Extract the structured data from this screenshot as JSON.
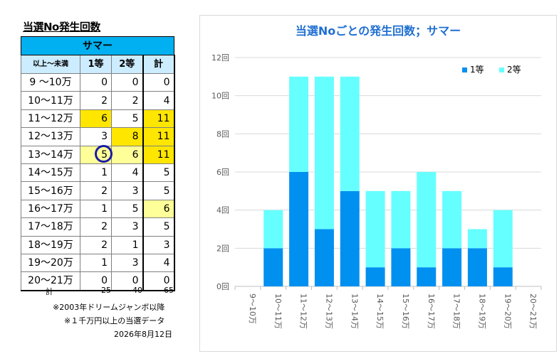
{
  "table": {
    "title": "当選No発生回数",
    "band": "サマー",
    "headers": [
      "以上～未満",
      "1等",
      "2等",
      "計"
    ],
    "rows": [
      {
        "range": "9 ～10万",
        "v1": 0,
        "v2": 0,
        "total": 0
      },
      {
        "range": "10～11万",
        "v1": 2,
        "v2": 2,
        "total": 4
      },
      {
        "range": "11～12万",
        "v1": 6,
        "v2": 5,
        "total": 11
      },
      {
        "range": "12～13万",
        "v1": 3,
        "v2": 8,
        "total": 11
      },
      {
        "range": "13～14万",
        "v1": 5,
        "v2": 6,
        "total": 11
      },
      {
        "range": "14～15万",
        "v1": 1,
        "v2": 4,
        "total": 5
      },
      {
        "range": "15～16万",
        "v1": 2,
        "v2": 3,
        "total": 5
      },
      {
        "range": "16～17万",
        "v1": 1,
        "v2": 5,
        "total": 6
      },
      {
        "range": "17～18万",
        "v1": 2,
        "v2": 3,
        "total": 5
      },
      {
        "range": "18～19万",
        "v1": 2,
        "v2": 1,
        "total": 3
      },
      {
        "range": "19～20万",
        "v1": 1,
        "v2": 3,
        "total": 4
      },
      {
        "range": "20～21万",
        "v1": 0,
        "v2": 0,
        "total": 0
      }
    ],
    "totals": {
      "label": "計",
      "v1": "25",
      "v2": "40",
      "total": "65"
    },
    "highlight_color": "#ffe600",
    "light_highlight_color": "#ffff99",
    "circle_color": "#1a1aa6"
  },
  "notes": {
    "line1": "※2003年ドリームジャンボ以降",
    "line2": "※１千万円以上の当選データ",
    "date": "2026年8月12日"
  },
  "chart_data": {
    "type": "bar",
    "stacked": true,
    "title": "当選Noごとの発生回数；サマー",
    "categories": [
      "9～10万",
      "10～11万",
      "11～12万",
      "12～13万",
      "13～14万",
      "14～15万",
      "15～16万",
      "16～17万",
      "17～18万",
      "18～19万",
      "19～20万",
      "20～21万"
    ],
    "series": [
      {
        "name": "1等",
        "values": [
          0,
          2,
          6,
          3,
          5,
          1,
          2,
          1,
          2,
          2,
          1,
          0
        ],
        "color": "#0090f0"
      },
      {
        "name": "2等",
        "values": [
          0,
          2,
          5,
          8,
          6,
          4,
          3,
          5,
          3,
          1,
          3,
          0
        ],
        "color": "#66ffff"
      }
    ],
    "ylim": [
      0,
      12
    ],
    "yticks": [
      "0回",
      "2回",
      "4回",
      "6回",
      "8回",
      "10回",
      "12回"
    ],
    "legend_position": "top-right",
    "grid": true
  }
}
